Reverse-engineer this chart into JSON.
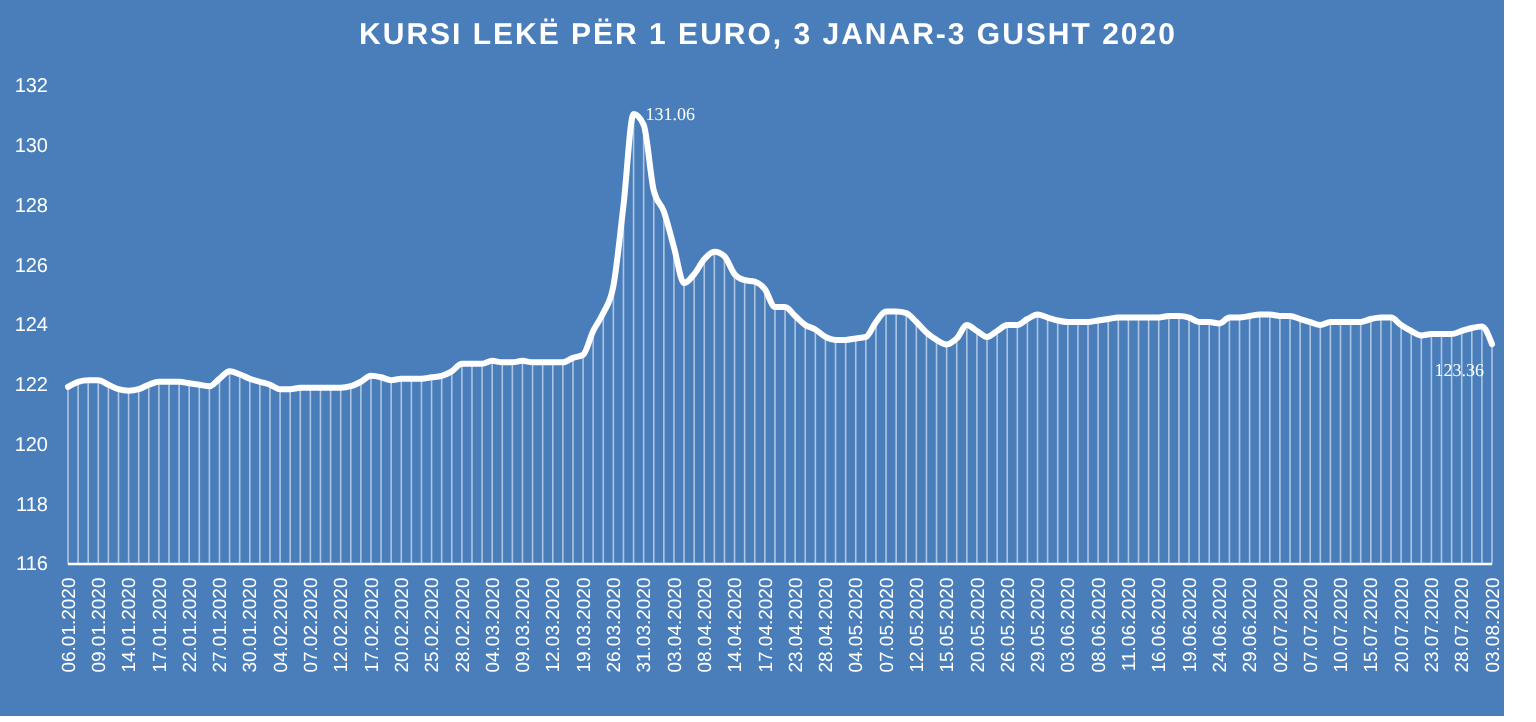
{
  "chart_data": {
    "type": "line",
    "title": "KURSI LEKË PËR 1 EURO, 3 JANAR-3 GUSHT 2020",
    "categories": [
      "06.01.2020",
      null,
      null,
      "09.01.2020",
      null,
      null,
      "14.01.2020",
      null,
      null,
      "17.01.2020",
      null,
      null,
      "22.01.2020",
      null,
      null,
      "27.01.2020",
      null,
      null,
      "30.01.2020",
      null,
      null,
      "04.02.2020",
      null,
      null,
      "07.02.2020",
      null,
      null,
      "12.02.2020",
      null,
      null,
      "17.02.2020",
      null,
      null,
      "20.02.2020",
      null,
      null,
      "25.02.2020",
      null,
      null,
      "28.02.2020",
      null,
      null,
      "04.03.2020",
      null,
      null,
      "09.03.2020",
      null,
      null,
      "12.03.2020",
      null,
      null,
      "19.03.2020",
      null,
      null,
      "26.03.2020",
      null,
      null,
      "31.03.2020",
      null,
      null,
      "03.04.2020",
      null,
      null,
      "08.04.2020",
      null,
      null,
      "14.04.2020",
      null,
      null,
      "17.04.2020",
      null,
      null,
      "23.04.2020",
      null,
      null,
      "28.04.2020",
      null,
      null,
      "04.05.2020",
      null,
      null,
      "07.05.2020",
      null,
      null,
      "12.05.2020",
      null,
      null,
      "15.05.2020",
      null,
      null,
      "20.05.2020",
      null,
      null,
      "26.05.2020",
      null,
      null,
      "29.05.2020",
      null,
      null,
      "03.06.2020",
      null,
      null,
      "08.06.2020",
      null,
      null,
      "11.06.2020",
      null,
      null,
      "16.06.2020",
      null,
      null,
      "19.06.2020",
      null,
      null,
      "24.06.2020",
      null,
      null,
      "29.06.2020",
      null,
      null,
      "02.07.2020",
      null,
      null,
      "07.07.2020",
      null,
      null,
      "10.07.2020",
      null,
      null,
      "15.07.2020",
      null,
      null,
      "20.07.2020",
      null,
      null,
      "23.07.2020",
      null,
      null,
      "28.07.2020",
      null,
      null,
      "03.08.2020"
    ],
    "series": [
      {
        "color": "#ffffff",
        "values": [
          121.93,
          122.1,
          122.15,
          122.15,
          122.0,
          121.85,
          121.8,
          121.85,
          122.0,
          122.1,
          122.1,
          122.1,
          122.05,
          122.0,
          121.95,
          122.2,
          122.45,
          122.35,
          122.2,
          122.1,
          122.0,
          121.85,
          121.85,
          121.9,
          121.9,
          121.9,
          121.9,
          121.9,
          121.95,
          122.1,
          122.3,
          122.25,
          122.15,
          122.2,
          122.2,
          122.2,
          122.25,
          122.3,
          122.45,
          122.7,
          122.7,
          122.7,
          122.8,
          122.75,
          122.75,
          122.8,
          122.75,
          122.75,
          122.75,
          122.75,
          122.9,
          123.0,
          123.8,
          124.4,
          125.3,
          128.0,
          131.06,
          130.7,
          128.5,
          127.8,
          126.6,
          125.4,
          125.7,
          126.2,
          126.45,
          126.3,
          125.7,
          125.5,
          125.45,
          125.2,
          124.6,
          124.6,
          124.3,
          124.0,
          123.85,
          123.6,
          123.5,
          123.5,
          123.55,
          123.6,
          124.1,
          124.45,
          124.45,
          124.4,
          124.1,
          123.75,
          123.5,
          123.35,
          123.55,
          124.0,
          123.8,
          123.6,
          123.8,
          124.0,
          124.0,
          124.2,
          124.35,
          124.25,
          124.15,
          124.1,
          124.1,
          124.1,
          124.15,
          124.2,
          124.25,
          124.25,
          124.25,
          124.25,
          124.25,
          124.3,
          124.3,
          124.25,
          124.1,
          124.1,
          124.05,
          124.25,
          124.25,
          124.3,
          124.35,
          124.35,
          124.3,
          124.3,
          124.2,
          124.1,
          124.0,
          124.1,
          124.1,
          124.1,
          124.1,
          124.2,
          124.25,
          124.25,
          124.0,
          123.8,
          123.65,
          123.7,
          123.7,
          123.7,
          123.8,
          123.9,
          123.95,
          123.36
        ],
        "value_labels": [
          null,
          null,
          null,
          null,
          null,
          null,
          null,
          null,
          null,
          null,
          null,
          null,
          null,
          null,
          null,
          null,
          null,
          null,
          null,
          null,
          null,
          null,
          null,
          null,
          null,
          null,
          null,
          null,
          null,
          null,
          null,
          null,
          null,
          null,
          null,
          null,
          null,
          null,
          null,
          null,
          null,
          null,
          null,
          null,
          null,
          null,
          null,
          null,
          null,
          null,
          null,
          null,
          null,
          null,
          null,
          null,
          "131.06",
          null,
          null,
          null,
          null,
          null,
          null,
          null,
          null,
          null,
          null,
          null,
          null,
          null,
          null,
          null,
          null,
          null,
          null,
          null,
          null,
          null,
          null,
          null,
          null,
          null,
          null,
          null,
          null,
          null,
          null,
          null,
          null,
          null,
          null,
          null,
          null,
          null,
          null,
          null,
          null,
          null,
          null,
          null,
          null,
          null,
          null,
          null,
          null,
          null,
          null,
          null,
          null,
          null,
          null,
          null,
          null,
          null,
          null,
          null,
          null,
          null,
          null,
          null,
          null,
          null,
          null,
          null,
          null,
          null,
          null,
          null,
          null,
          null,
          null,
          null,
          null,
          null,
          null,
          null,
          null,
          null,
          null,
          null,
          null,
          "123.36"
        ]
      }
    ],
    "ylim": [
      116,
      132
    ],
    "yticks": [
      116,
      118,
      120,
      122,
      124,
      126,
      128,
      130,
      132
    ],
    "grid": "x",
    "legend": false,
    "marker": "none",
    "line_style": "solid"
  }
}
